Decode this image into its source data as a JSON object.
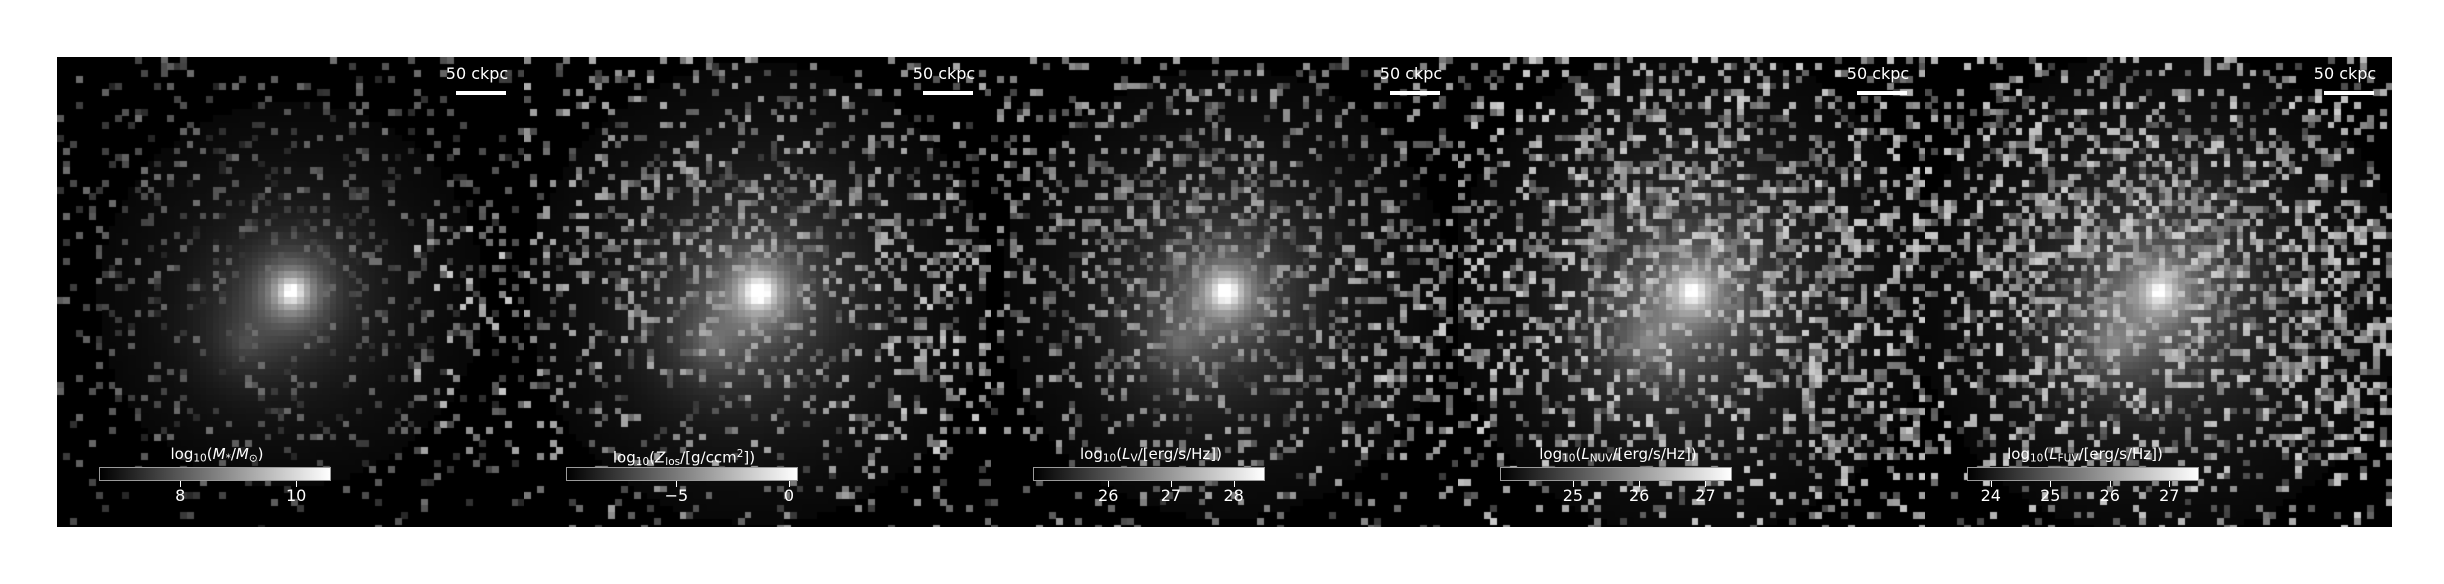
{
  "scalebar_label": "50 ckpc",
  "panels": [
    {
      "id": "stellar-mass",
      "cbar": {
        "pre": "log",
        "sub": "10",
        "open": "(",
        "var": "M",
        "var_sub": "*",
        "mid": "/",
        "var2": "M",
        "var2_sub": "⊙",
        "units": "",
        "sup": "",
        "close": ")"
      },
      "ticks": [
        "8",
        "10"
      ],
      "cbar_range": [
        6.6,
        10.6
      ],
      "tick_values": [
        8,
        10
      ],
      "bright": 0.55,
      "noise": 0.35,
      "core": 1.0
    },
    {
      "id": "metal-mass",
      "cbar": {
        "pre": "log",
        "sub": "10",
        "open": "(",
        "var": "Z",
        "var_sub": "los",
        "mid": "/[g/ccm",
        "var2": "",
        "var2_sub": "",
        "units": "",
        "sup": "2",
        "close": "])"
      },
      "ticks": [
        "−5",
        "0"
      ],
      "cbar_range": [
        -9.9,
        0.4
      ],
      "tick_values": [
        -5,
        0
      ],
      "bright": 0.85,
      "noise": 0.55,
      "core": 1.0
    },
    {
      "id": "lum-v",
      "cbar": {
        "pre": "log",
        "sub": "10",
        "open": "(",
        "var": "L",
        "var_sub": "V",
        "mid": "/[erg/s/Hz])",
        "var2": "",
        "var2_sub": "",
        "units": "",
        "sup": "",
        "close": ""
      },
      "ticks": [
        "26",
        "27",
        "28"
      ],
      "cbar_range": [
        24.8,
        28.5
      ],
      "tick_values": [
        26,
        27,
        28
      ],
      "bright": 0.8,
      "noise": 0.6,
      "core": 0.95
    },
    {
      "id": "lum-nuv",
      "cbar": {
        "pre": "log",
        "sub": "10",
        "open": "(",
        "var": "L",
        "var_sub": "NUV",
        "mid": "/[erg/s/Hz])",
        "var2": "",
        "var2_sub": "",
        "units": "",
        "sup": "",
        "close": ""
      },
      "ticks": [
        "25",
        "26",
        "27"
      ],
      "cbar_range": [
        23.9,
        27.4
      ],
      "tick_values": [
        25,
        26,
        27
      ],
      "bright": 1.0,
      "noise": 0.85,
      "core": 0.75
    },
    {
      "id": "lum-fuv",
      "cbar": {
        "pre": "log",
        "sub": "10",
        "open": "(",
        "var": "L",
        "var_sub": "FUV",
        "mid": "/[erg/s/Hz])",
        "var2": "",
        "var2_sub": "",
        "units": "",
        "sup": "",
        "close": ""
      },
      "ticks": [
        "24",
        "25",
        "26",
        "27"
      ],
      "cbar_range": [
        23.6,
        27.5
      ],
      "tick_values": [
        24,
        25,
        26,
        27
      ],
      "bright": 1.0,
      "noise": 0.9,
      "core": 0.7
    }
  ]
}
